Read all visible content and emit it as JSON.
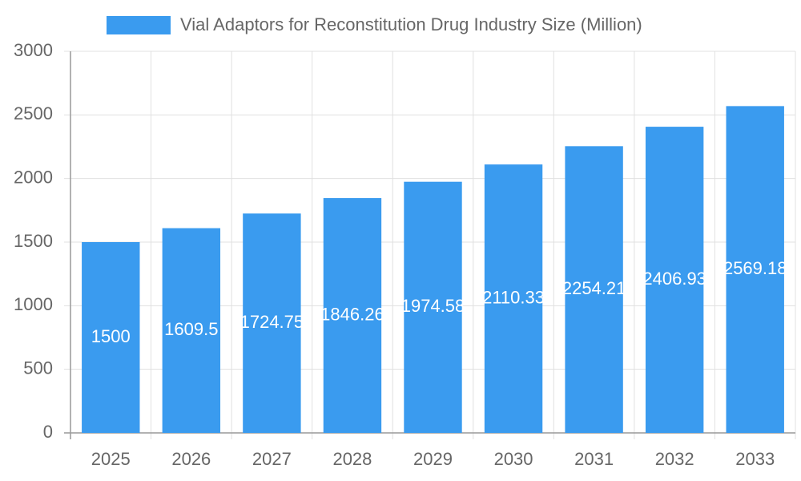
{
  "chart_data": {
    "type": "bar",
    "series": [
      {
        "name": "Vial Adaptors for Reconstitution Drug Industry Size (Million)",
        "color": "#3a9bef",
        "values": [
          1500,
          1609.5,
          1724.75,
          1846.26,
          1974.58,
          2110.33,
          2254.21,
          2406.93,
          2569.18
        ]
      }
    ],
    "categories": [
      "2025",
      "2026",
      "2027",
      "2028",
      "2029",
      "2030",
      "2031",
      "2032",
      "2033"
    ],
    "ylim": [
      0,
      3000
    ],
    "yticks": [
      0,
      500,
      1000,
      1500,
      2000,
      2500,
      3000
    ],
    "grid": true,
    "legend": "top"
  }
}
